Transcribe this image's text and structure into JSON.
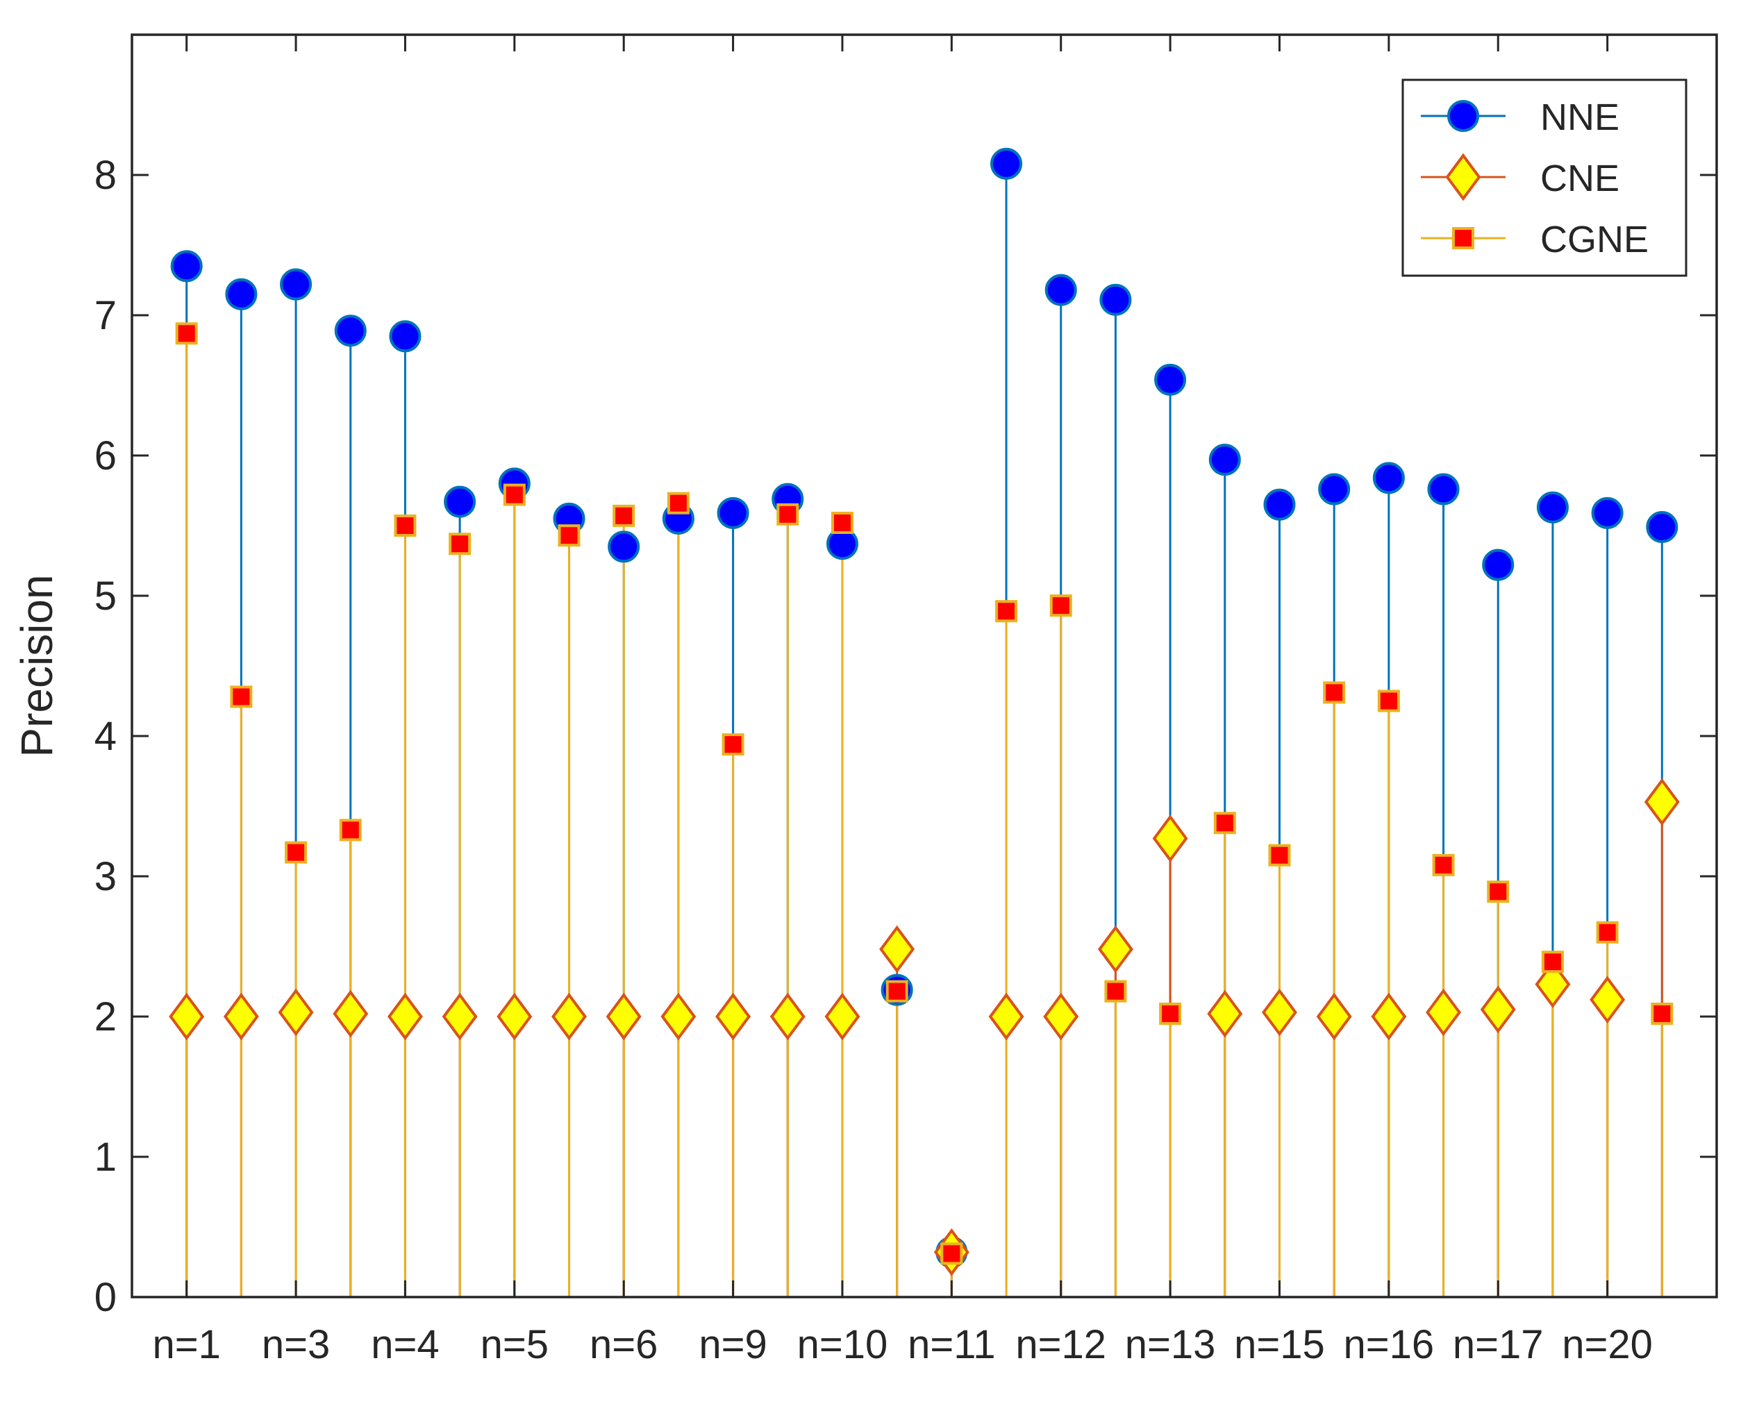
{
  "chart_data": {
    "type": "stem",
    "title": "",
    "xlabel": "",
    "ylabel": "Precision",
    "ylim": [
      0,
      9
    ],
    "yticks": [
      0,
      1,
      2,
      3,
      4,
      5,
      6,
      7,
      8
    ],
    "xlim": [
      0,
      29
    ],
    "x": [
      1,
      2,
      3,
      4,
      5,
      6,
      7,
      8,
      9,
      10,
      11,
      12,
      13,
      14,
      15,
      16,
      17,
      18,
      19,
      20,
      21,
      22,
      23,
      24,
      25,
      26,
      27,
      28
    ],
    "xtick_positions": [
      1,
      3,
      5,
      7,
      9,
      11,
      13,
      15,
      17,
      19,
      21,
      23,
      25,
      27
    ],
    "xtick_labels": [
      "n=1",
      "n=3",
      "n=4",
      "n=5",
      "n=6",
      "n=9",
      "n=10",
      "n=11",
      "n=12",
      "n=13",
      "n=15",
      "n=16",
      "n=17",
      "n=20"
    ],
    "legend_position": "top-right",
    "series": [
      {
        "name": "NNE",
        "color": "#0072BD",
        "marker": "circle",
        "marker_fill": "#0000FF",
        "marker_edge": "#0072BD",
        "values": [
          7.35,
          7.15,
          7.22,
          6.89,
          6.85,
          5.67,
          5.8,
          5.55,
          5.35,
          5.55,
          5.59,
          5.69,
          5.37,
          2.19,
          0.32,
          8.08,
          7.18,
          7.11,
          6.54,
          5.97,
          5.65,
          5.76,
          5.84,
          5.76,
          5.22,
          5.63,
          5.59,
          5.49
        ]
      },
      {
        "name": "CNE",
        "color": "#D95319",
        "marker": "diamond",
        "marker_fill": "#FFFF00",
        "marker_edge": "#D95319",
        "values": [
          2.0,
          2.0,
          2.03,
          2.02,
          2.0,
          2.0,
          2.0,
          2.0,
          2.0,
          2.0,
          2.0,
          2.0,
          2.0,
          2.48,
          0.32,
          2.0,
          2.0,
          2.48,
          3.27,
          2.02,
          2.03,
          2.0,
          2.0,
          2.03,
          2.05,
          2.23,
          2.12,
          3.53
        ]
      },
      {
        "name": "CGNE",
        "color": "#EDB120",
        "marker": "square",
        "marker_fill": "#FF0000",
        "marker_edge": "#EDB120",
        "values": [
          6.87,
          4.28,
          3.17,
          3.33,
          5.5,
          5.37,
          5.72,
          5.43,
          5.57,
          5.66,
          3.94,
          5.58,
          5.52,
          2.18,
          0.31,
          4.89,
          4.93,
          2.18,
          2.02,
          3.38,
          3.15,
          4.31,
          4.25,
          3.08,
          2.89,
          2.39,
          2.6,
          2.02
        ]
      }
    ]
  }
}
